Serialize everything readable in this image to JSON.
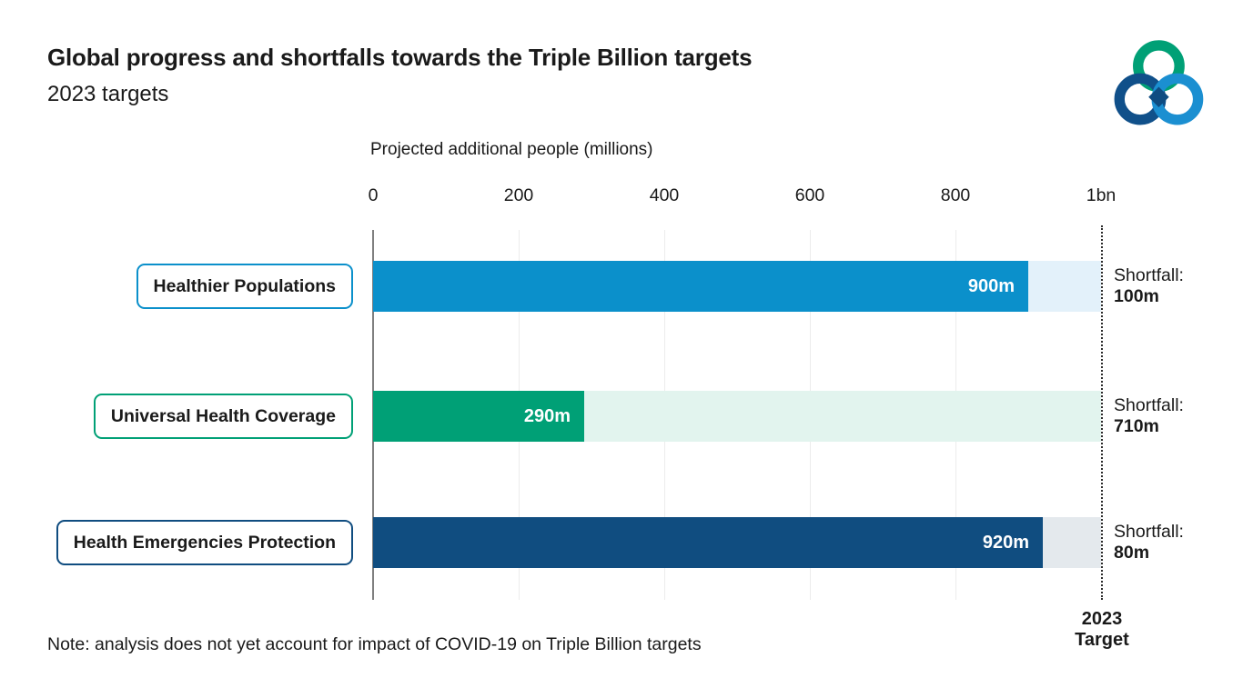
{
  "header": {
    "title": "Global progress and shortfalls towards the Triple Billion targets",
    "subtitle": "2023 targets"
  },
  "logo": {
    "name": "triple-billion-logo",
    "colors": {
      "green": "#00a076",
      "navy": "#10508a",
      "blue": "#1b8fd1",
      "diamond": "#0f4c81"
    }
  },
  "note": "Note: analysis does not yet account for impact of COVID-19 on Triple Billion targets",
  "chart_data": {
    "type": "bar",
    "orientation": "horizontal",
    "axis_title": "Projected additional people (millions)",
    "x_ticks": [
      "0",
      "200",
      "400",
      "600",
      "800",
      "1bn"
    ],
    "x_tick_values": [
      0,
      200,
      400,
      600,
      800,
      1000
    ],
    "x_range": [
      0,
      1000
    ],
    "grid": "vertical-light",
    "target_line_value": 1000,
    "target_label": {
      "line1": "2023",
      "line2": "Target"
    },
    "shortfall_prefix": "Shortfall:",
    "categories": [
      "Healthier Populations",
      "Universal Health Coverage",
      "Health Emergencies Protection"
    ],
    "rows": [
      {
        "label": "Healthier Populations",
        "value": 900,
        "value_label": "900m",
        "shortfall": 100,
        "shortfall_label": "100m",
        "color": "#0b90cb",
        "track_color": "#e3f1fa"
      },
      {
        "label": "Universal Health Coverage",
        "value": 290,
        "value_label": "290m",
        "shortfall": 710,
        "shortfall_label": "710m",
        "color": "#00a076",
        "track_color": "#e2f4ee"
      },
      {
        "label": "Health Emergencies Protection",
        "value": 920,
        "value_label": "920m",
        "shortfall": 80,
        "shortfall_label": "80m",
        "color": "#104d80",
        "track_color": "#e4e9ed"
      }
    ]
  }
}
